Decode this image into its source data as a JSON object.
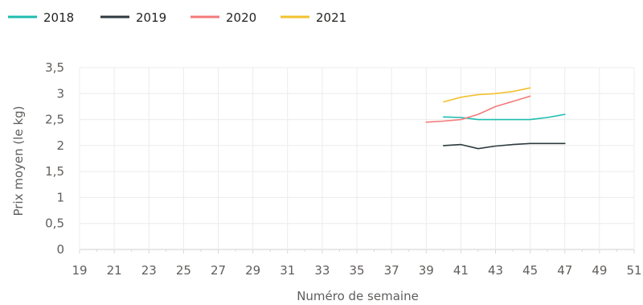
{
  "chart_data": {
    "type": "line",
    "xlabel": "Numéro de semaine",
    "ylabel": "Prix moyen  (le kg)",
    "xlim": [
      19,
      51
    ],
    "ylim": [
      0,
      3.5
    ],
    "x_ticks": [
      "19",
      "21",
      "23",
      "25",
      "27",
      "29",
      "31",
      "33",
      "35",
      "37",
      "39",
      "41",
      "43",
      "45",
      "47",
      "49",
      "51"
    ],
    "y_ticks": [
      "0",
      "0,5",
      "1",
      "1,5",
      "2",
      "2,5",
      "3",
      "3,5"
    ],
    "grid": true,
    "legend_position": "top-left",
    "series": [
      {
        "name": "2018",
        "color": "#1ebcb0",
        "x": [
          40,
          41,
          42,
          43,
          44,
          45,
          46,
          47
        ],
        "y": [
          2.55,
          2.54,
          2.5,
          2.5,
          2.5,
          2.5,
          2.54,
          2.6
        ]
      },
      {
        "name": "2019",
        "color": "#2e3a3f",
        "x": [
          40,
          41,
          42,
          43,
          44,
          45,
          46,
          47
        ],
        "y": [
          2.0,
          2.02,
          1.94,
          1.99,
          2.02,
          2.04,
          2.04,
          2.04
        ]
      },
      {
        "name": "2020",
        "color": "#f47a7a",
        "x": [
          39,
          40,
          41,
          42,
          43,
          44,
          45
        ],
        "y": [
          2.45,
          2.47,
          2.5,
          2.6,
          2.75,
          2.85,
          2.95
        ]
      },
      {
        "name": "2021",
        "color": "#f2c12e",
        "x": [
          40,
          41,
          42,
          43,
          44,
          45
        ],
        "y": [
          2.84,
          2.93,
          2.98,
          3.0,
          3.04,
          3.11
        ]
      }
    ]
  }
}
